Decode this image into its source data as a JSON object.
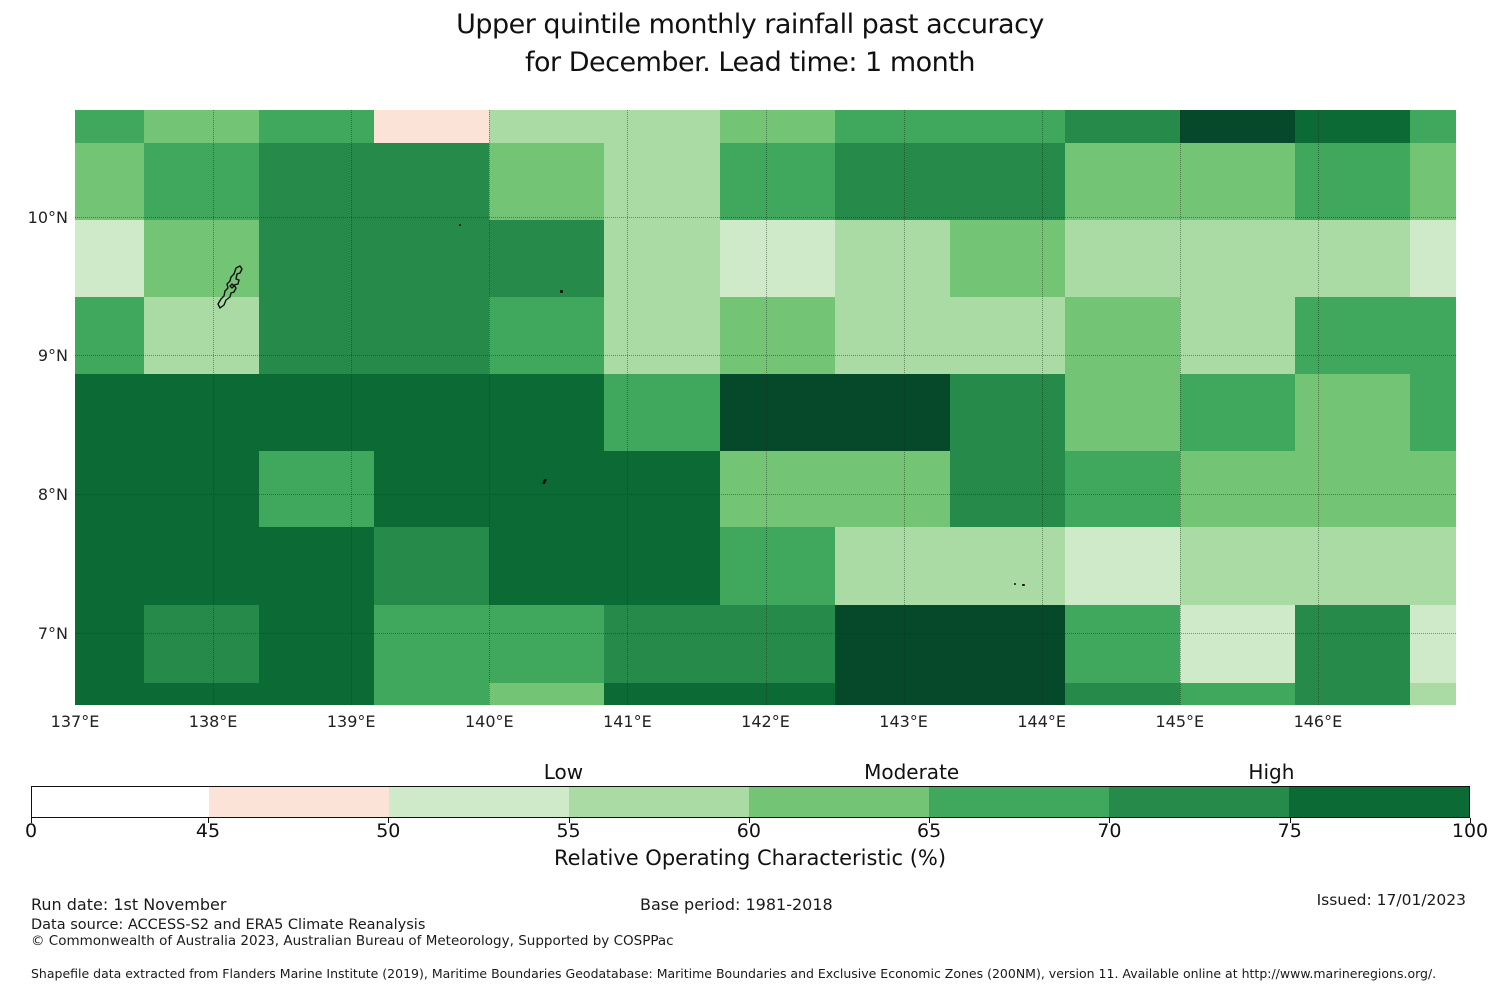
{
  "title_line1": "Upper quintile monthly rainfall past accuracy",
  "title_line2": "for December. Lead time: 1 month",
  "footer": {
    "run_date": "Run date: 1st November",
    "base_period": "Base period: 1981-2018",
    "issued": "Issued: 17/01/2023",
    "data_source": "Data source: ACCESS-S2 and ERA5 Climate Reanalysis",
    "copyright": "© Commonwealth of Australia 2023, Australian Bureau of Meteorology, Supported by COSPPac",
    "shapefile": "Shapefile data extracted from Flanders Marine Institute (2019), Maritime Boundaries Geodatabase: Maritime Boundaries and Exclusive Economic Zones (200NM), version 11. Available online at http://www.marineregions.org/."
  },
  "chart_data": {
    "type": "heatmap",
    "title": "Upper quintile monthly rainfall past accuracy for December. Lead time: 1 month",
    "xlabel": "",
    "ylabel": "",
    "extent": {
      "lon_min": 137.0,
      "lon_max": 147.0,
      "lat_min": 6.48,
      "lat_max": 10.77
    },
    "x_axis": {
      "ticks": [
        {
          "lon": 137,
          "label": "137°E"
        },
        {
          "lon": 138,
          "label": "138°E"
        },
        {
          "lon": 139,
          "label": "139°E"
        },
        {
          "lon": 140,
          "label": "140°E"
        },
        {
          "lon": 141,
          "label": "141°E"
        },
        {
          "lon": 142,
          "label": "142°E"
        },
        {
          "lon": 143,
          "label": "143°E"
        },
        {
          "lon": 144,
          "label": "144°E"
        },
        {
          "lon": 145,
          "label": "145°E"
        },
        {
          "lon": 146,
          "label": "146°E"
        }
      ],
      "gridlines": [
        138,
        139,
        140,
        141,
        142,
        143,
        144,
        145,
        146
      ]
    },
    "y_axis": {
      "ticks": [
        {
          "lat": 10,
          "label": "10°N"
        },
        {
          "lat": 9,
          "label": "9°N"
        },
        {
          "lat": 8,
          "label": "8°N"
        },
        {
          "lat": 7,
          "label": "7°N"
        }
      ],
      "gridlines": [
        10,
        9,
        8,
        7
      ]
    },
    "bins": {
      "W": {
        "range": "0-45",
        "value_est": 40,
        "color": "#ffffff"
      },
      "P": {
        "range": "45-50",
        "value_est": 47,
        "color": "#fbe3d8"
      },
      "G1": {
        "range": "50-55",
        "value_est": 52,
        "color": "#cfeac8"
      },
      "G2": {
        "range": "55-60",
        "value_est": 57,
        "color": "#abdba4"
      },
      "G3": {
        "range": "60-65",
        "value_est": 62,
        "color": "#74c476"
      },
      "G4": {
        "range": "65-70",
        "value_est": 67,
        "color": "#3fa85c"
      },
      "G5": {
        "range": "70-75",
        "value_est": 72,
        "color": "#268a4a"
      },
      "G6": {
        "range": "75-100",
        "value_est": 80,
        "color": "#0c6b34"
      },
      "G7": {
        "range": "75-100",
        "value_est": 93,
        "color": "#05492a"
      }
    },
    "lon_cell_bounds": [
      137.0,
      137.5,
      138.333,
      139.167,
      140.0,
      140.833,
      141.667,
      142.5,
      143.333,
      144.167,
      145.0,
      145.833,
      146.667,
      147.0
    ],
    "lat_cell_bounds": [
      10.77,
      10.53,
      9.98,
      9.42,
      8.87,
      8.31,
      7.76,
      7.2,
      6.64,
      6.48
    ],
    "grid_bins": [
      [
        "G4",
        "G3",
        "G4",
        "P",
        "G2",
        "G2",
        "G3",
        "G4",
        "G4",
        "G5",
        "G7",
        "G6",
        "G4"
      ],
      [
        "G3",
        "G4",
        "G5",
        "G5",
        "G3",
        "G2",
        "G4",
        "G5",
        "G5",
        "G3",
        "G3",
        "G4",
        "G3"
      ],
      [
        "G1",
        "G3",
        "G5",
        "G5",
        "G5",
        "G2",
        "G1",
        "G2",
        "G3",
        "G2",
        "G2",
        "G2",
        "G1"
      ],
      [
        "G4",
        "G2",
        "G5",
        "G5",
        "G4",
        "G2",
        "G3",
        "G2",
        "G2",
        "G3",
        "G2",
        "G4",
        "G4"
      ],
      [
        "G6",
        "G6",
        "G6",
        "G6",
        "G6",
        "G4",
        "G7",
        "G7",
        "G5",
        "G3",
        "G4",
        "G3",
        "G4"
      ],
      [
        "G6",
        "G6",
        "G4",
        "G6",
        "G6",
        "G6",
        "G3",
        "G3",
        "G5",
        "G4",
        "G3",
        "G3",
        "G3"
      ],
      [
        "G6",
        "G6",
        "G6",
        "G5",
        "G6",
        "G6",
        "G4",
        "G2",
        "G2",
        "G1",
        "G2",
        "G2",
        "G2"
      ],
      [
        "G6",
        "G5",
        "G6",
        "G4",
        "G4",
        "G5",
        "G5",
        "G7",
        "G7",
        "G4",
        "G1",
        "G5",
        "G1"
      ],
      [
        "G6",
        "G6",
        "G6",
        "G4",
        "G3",
        "G6",
        "G6",
        "G7",
        "G7",
        "G5",
        "G4",
        "G5",
        "G2"
      ]
    ],
    "islands": [
      {
        "kind": "outline",
        "lon": 138.06,
        "lat": 9.63,
        "w": 28,
        "h": 46
      },
      {
        "kind": "dot",
        "lon": 139.78,
        "lat": 9.95,
        "w": 2,
        "h": 2
      },
      {
        "kind": "dot",
        "lon": 140.51,
        "lat": 9.47,
        "w": 3,
        "h": 3
      },
      {
        "kind": "dash",
        "lon": 140.39,
        "lat": 8.11,
        "w": 3,
        "h": 5
      },
      {
        "kind": "dot",
        "lon": 143.8,
        "lat": 7.36,
        "w": 2,
        "h": 2
      },
      {
        "kind": "dot",
        "lon": 143.86,
        "lat": 7.35,
        "w": 3,
        "h": 2
      }
    ],
    "colorbar": {
      "axis_title": "Relative Operating Characteristic (%)",
      "ticks": [
        0,
        45,
        50,
        55,
        60,
        65,
        70,
        75,
        100
      ],
      "segments": [
        {
          "from": 0,
          "to": 45,
          "color": "#ffffff"
        },
        {
          "from": 45,
          "to": 50,
          "color": "#fbe3d8"
        },
        {
          "from": 50,
          "to": 55,
          "color": "#cfeac8"
        },
        {
          "from": 55,
          "to": 60,
          "color": "#abdba4"
        },
        {
          "from": 60,
          "to": 65,
          "color": "#74c476"
        },
        {
          "from": 65,
          "to": 70,
          "color": "#3fa85c"
        },
        {
          "from": 70,
          "to": 75,
          "color": "#268a4a"
        },
        {
          "from": 75,
          "to": 100,
          "color": "#0c6b34"
        }
      ],
      "region_labels": [
        {
          "label": "Low",
          "pct": 37.0
        },
        {
          "label": "Moderate",
          "pct": 61.2
        },
        {
          "label": "High",
          "pct": 86.2
        }
      ]
    }
  }
}
